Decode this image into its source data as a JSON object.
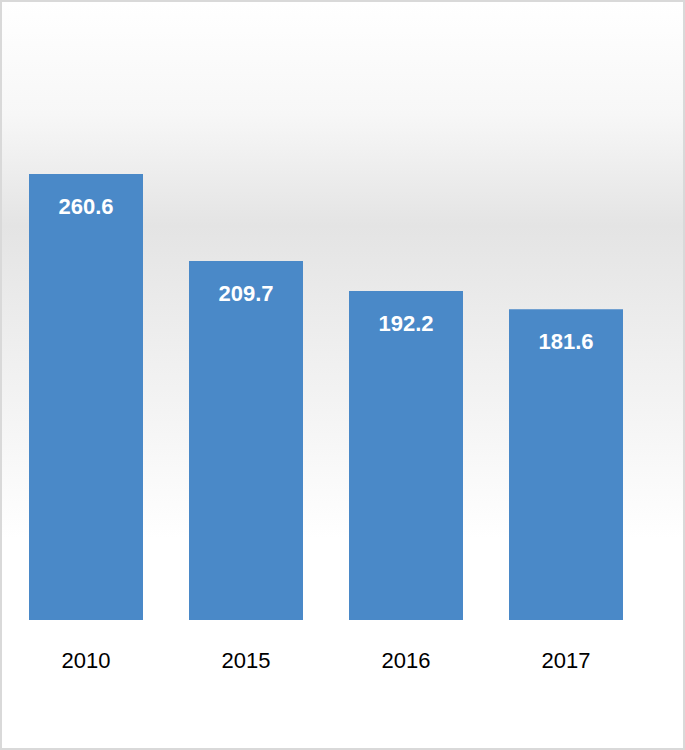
{
  "chart_data": {
    "type": "bar",
    "categories": [
      "2010",
      "2015",
      "2016",
      "2017"
    ],
    "values": [
      260.6,
      209.7,
      192.2,
      181.6
    ],
    "color": "#4a89c8",
    "data_labels": true,
    "tick_labels": "x"
  }
}
